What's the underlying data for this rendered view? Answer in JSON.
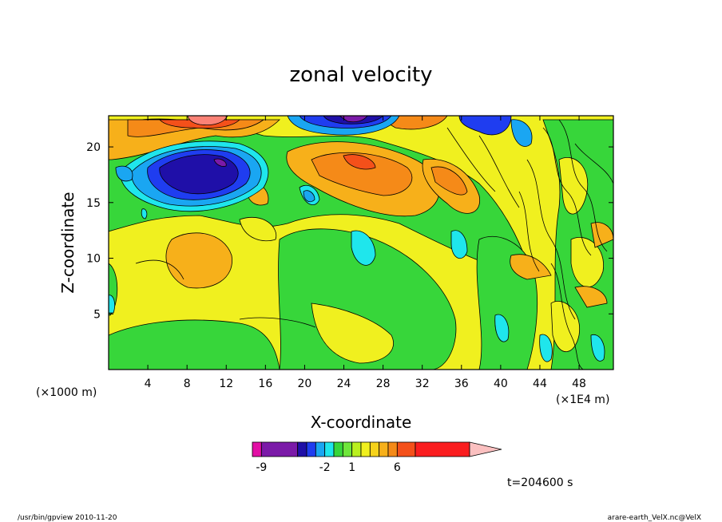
{
  "chart_data": {
    "type": "heatmap",
    "title": "zonal velocity",
    "xlabel": "X-coordinate",
    "ylabel": "Z-coordinate",
    "x_unit_left": "(×1000 m)",
    "x_unit_right": "(×1E4 m)",
    "x_ticks": [
      "4",
      "8",
      "12",
      "16",
      "20",
      "24",
      "28",
      "32",
      "36",
      "40",
      "44",
      "48"
    ],
    "x_tick_values": [
      4,
      8,
      12,
      16,
      20,
      24,
      28,
      32,
      36,
      40,
      44,
      48
    ],
    "y_ticks": [
      "5",
      "10",
      "15",
      "20"
    ],
    "y_tick_values": [
      5,
      10,
      15,
      20
    ],
    "xlim": [
      0,
      51.5
    ],
    "ylim": [
      0,
      22.8
    ],
    "colorbar": {
      "levels": [
        -10,
        -9,
        -5,
        -4,
        -3,
        -2,
        -1,
        0,
        1,
        2,
        3,
        4,
        5,
        6,
        8,
        14
      ],
      "colors": [
        "#e20fa5",
        "#7b1aa8",
        "#1f0fa8",
        "#1f3df0",
        "#1aa6f2",
        "#1fe6ec",
        "#37d63a",
        "#6ee63a",
        "#b9f01f",
        "#f0f01f",
        "#f6d21a",
        "#f7b01a",
        "#f58a18",
        "#f4501a",
        "#fa1d1f",
        "#fb8276"
      ],
      "tick_labels": [
        "-9",
        "-2",
        "1",
        "6"
      ],
      "tick_values": [
        -9,
        -2,
        1,
        6
      ]
    },
    "time_label": "t=204600 s"
  },
  "footer": {
    "left": "/usr/bin/gpview  2010-11-20",
    "right": "arare-earth_VelX.nc@VelX"
  }
}
